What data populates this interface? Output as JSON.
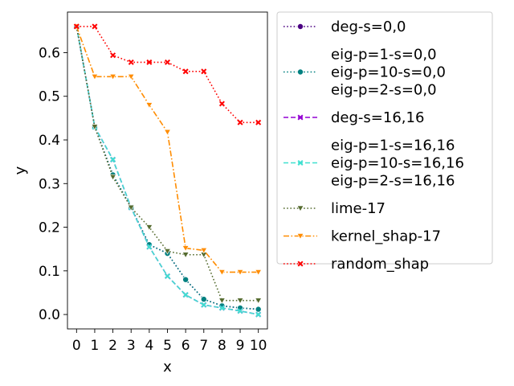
{
  "chart_data": {
    "type": "line",
    "title": "",
    "xlabel": "x",
    "ylabel": "y",
    "x": [
      0,
      1,
      2,
      3,
      4,
      5,
      6,
      7,
      8,
      9,
      10
    ],
    "xlim": [
      -0.5,
      10.5
    ],
    "ylim": [
      -0.033,
      0.693
    ],
    "yticks": [
      0.0,
      0.1,
      0.2,
      0.3,
      0.4,
      0.5,
      0.6
    ],
    "ytick_labels": [
      "0.0",
      "0.1",
      "0.2",
      "0.3",
      "0.4",
      "0.5",
      "0.6"
    ],
    "xtick_labels": [
      "0",
      "1",
      "2",
      "3",
      "4",
      "5",
      "6",
      "7",
      "8",
      "9",
      "10"
    ],
    "grid": false,
    "legend_position": "outside-right",
    "series": [
      {
        "name": "deg-s=0,0",
        "color": "#4b0082",
        "dash": "dotted",
        "marker": "circle",
        "values": [
          0.66,
          0.43,
          0.32,
          0.245,
          0.16,
          0.14,
          0.08,
          0.035,
          0.02,
          0.015,
          0.012
        ]
      },
      {
        "name": "eig-p=1-s=0,0\neig-p=10-s=0,0\neig-p=2-s=0,0",
        "color": "#008080",
        "dash": "dotted",
        "marker": "circle",
        "values": [
          0.66,
          0.43,
          0.32,
          0.245,
          0.16,
          0.14,
          0.08,
          0.035,
          0.02,
          0.015,
          0.012
        ]
      },
      {
        "name": "deg-s=16,16",
        "color": "#9400d3",
        "dash": "dashed",
        "marker": "x",
        "values": [
          0.66,
          0.43,
          0.355,
          0.245,
          0.155,
          0.088,
          0.045,
          0.022,
          0.015,
          0.008,
          0.0
        ]
      },
      {
        "name": "eig-p=1-s=16,16\neig-p=10-s=16,16\neig-p=2-s=16,16",
        "color": "#40e0d0",
        "dash": "dashed",
        "marker": "x",
        "values": [
          0.66,
          0.43,
          0.355,
          0.245,
          0.155,
          0.088,
          0.045,
          0.022,
          0.015,
          0.008,
          0.0
        ]
      },
      {
        "name": "lime-17",
        "color": "#556b2f",
        "dash": "dotted",
        "marker": "triangle-down",
        "values": [
          0.66,
          0.43,
          0.315,
          0.245,
          0.2,
          0.145,
          0.137,
          0.137,
          0.032,
          0.032,
          0.032
        ]
      },
      {
        "name": "kernel_shap-17",
        "color": "#ff8c00",
        "dash": "dashdot",
        "marker": "triangle-down",
        "values": [
          0.66,
          0.545,
          0.545,
          0.545,
          0.48,
          0.418,
          0.152,
          0.147,
          0.097,
          0.097,
          0.097
        ]
      },
      {
        "name": "random_shap",
        "color": "#ff0000",
        "dash": "dotted",
        "marker": "x",
        "values": [
          0.66,
          0.66,
          0.594,
          0.578,
          0.578,
          0.578,
          0.557,
          0.557,
          0.483,
          0.44,
          0.44
        ]
      }
    ]
  }
}
